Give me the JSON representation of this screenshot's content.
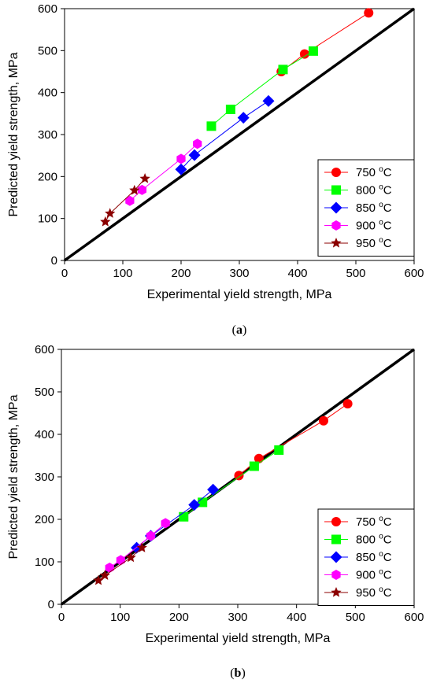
{
  "chart_data": [
    {
      "type": "scatter",
      "panel_label": "a",
      "xlabel": "Experimental yield strength, MPa",
      "ylabel": "Predicted yield strength, MPa",
      "xlim": [
        0,
        600
      ],
      "ylim": [
        0,
        600
      ],
      "x_ticks": [
        "0",
        "100",
        "200",
        "300",
        "400",
        "500",
        "600"
      ],
      "y_ticks": [
        "0",
        "100",
        "200",
        "300",
        "400",
        "500",
        "600"
      ],
      "reference_line": [
        [
          0,
          0
        ],
        [
          600,
          600
        ]
      ],
      "legend_position": "bottom-right",
      "series": [
        {
          "name": "750 °C",
          "color": "#ff0000",
          "marker": "circle",
          "points": [
            [
              372,
              450
            ],
            [
              412,
              492
            ],
            [
              522,
              590
            ]
          ]
        },
        {
          "name": "800 °C",
          "color": "#00ff00",
          "marker": "square",
          "points": [
            [
              252,
              320
            ],
            [
              285,
              360
            ],
            [
              375,
              455
            ],
            [
              427,
              499
            ]
          ]
        },
        {
          "name": "850 °C",
          "color": "#0000ff",
          "marker": "diamond",
          "points": [
            [
              200,
              217
            ],
            [
              223,
              251
            ],
            [
              307,
              340
            ],
            [
              350,
              380
            ]
          ]
        },
        {
          "name": "900 °C",
          "color": "#ff00ff",
          "marker": "hexagon",
          "points": [
            [
              112,
              142
            ],
            [
              133,
              168
            ],
            [
              200,
              242
            ],
            [
              228,
              278
            ]
          ]
        },
        {
          "name": "950 °C",
          "color": "#8b0000",
          "marker": "star",
          "points": [
            [
              70,
              92
            ],
            [
              78,
              112
            ],
            [
              120,
              167
            ],
            [
              138,
              195
            ]
          ]
        }
      ]
    },
    {
      "type": "scatter",
      "panel_label": "b",
      "xlabel": "Experimental yield strength, MPa",
      "ylabel": "Predicted yield strength, MPa",
      "xlim": [
        0,
        600
      ],
      "ylim": [
        0,
        600
      ],
      "x_ticks": [
        "0",
        "100",
        "200",
        "300",
        "400",
        "500",
        "600"
      ],
      "y_ticks": [
        "0",
        "100",
        "200",
        "300",
        "400",
        "500",
        "600"
      ],
      "reference_line": [
        [
          0,
          0
        ],
        [
          600,
          600
        ]
      ],
      "legend_position": "bottom-right",
      "series": [
        {
          "name": "750 °C",
          "color": "#ff0000",
          "marker": "circle",
          "points": [
            [
              302,
              303
            ],
            [
              336,
              343
            ],
            [
              446,
              432
            ],
            [
              487,
              472
            ]
          ]
        },
        {
          "name": "800 °C",
          "color": "#00ff00",
          "marker": "square",
          "points": [
            [
              208,
              206
            ],
            [
              240,
              240
            ],
            [
              328,
              325
            ],
            [
              370,
              363
            ]
          ]
        },
        {
          "name": "850 °C",
          "color": "#0000ff",
          "marker": "diamond",
          "points": [
            [
              128,
              133
            ],
            [
              152,
              161
            ],
            [
              226,
              234
            ],
            [
              258,
              270
            ]
          ]
        },
        {
          "name": "900 °C",
          "color": "#ff00ff",
          "marker": "hexagon",
          "points": [
            [
              82,
              86
            ],
            [
              101,
              104
            ],
            [
              152,
              161
            ],
            [
              177,
              191
            ]
          ]
        },
        {
          "name": "950 °C",
          "color": "#8b0000",
          "marker": "star",
          "points": [
            [
              63,
              56
            ],
            [
              74,
              68
            ],
            [
              118,
              110
            ],
            [
              137,
              133
            ]
          ]
        }
      ]
    }
  ]
}
